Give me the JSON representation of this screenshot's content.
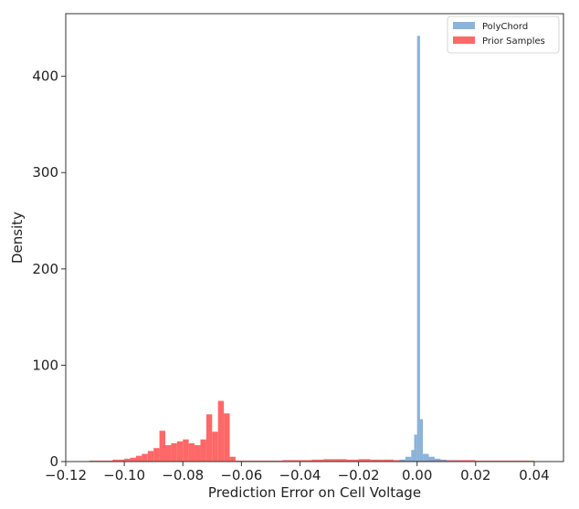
{
  "chart_data": {
    "type": "histogram",
    "title": "",
    "xlabel": "Prediction Error on Cell Voltage",
    "ylabel": "Density",
    "xlim": [
      -0.12,
      0.05
    ],
    "ylim": [
      0,
      465
    ],
    "x_ticks": [
      -0.12,
      -0.1,
      -0.08,
      -0.06,
      -0.04,
      -0.02,
      0.0,
      0.02,
      0.04
    ],
    "x_tick_labels": [
      "−0.12",
      "−0.10",
      "−0.08",
      "−0.06",
      "−0.04",
      "−0.02",
      "0.00",
      "0.02",
      "0.04"
    ],
    "y_ticks": [
      0,
      100,
      200,
      300,
      400
    ],
    "y_tick_labels": [
      "0",
      "100",
      "200",
      "300",
      "400"
    ],
    "grid": false,
    "legend_position": "top-right",
    "series": [
      {
        "name": "PolyChord",
        "color": "#6699cc",
        "opacity": 0.75,
        "bins": [
          {
            "x0": -0.006,
            "x1": -0.004,
            "y": 2
          },
          {
            "x0": -0.004,
            "x1": -0.002,
            "y": 5
          },
          {
            "x0": -0.002,
            "x1": -0.001,
            "y": 12
          },
          {
            "x0": -0.001,
            "x1": 0.0,
            "y": 28
          },
          {
            "x0": 0.0,
            "x1": 0.001,
            "y": 442
          },
          {
            "x0": 0.001,
            "x1": 0.002,
            "y": 44
          },
          {
            "x0": 0.002,
            "x1": 0.004,
            "y": 8
          },
          {
            "x0": 0.004,
            "x1": 0.006,
            "y": 5
          },
          {
            "x0": 0.006,
            "x1": 0.008,
            "y": 3
          },
          {
            "x0": 0.008,
            "x1": 0.01,
            "y": 2
          },
          {
            "x0": 0.01,
            "x1": 0.014,
            "y": 1
          }
        ]
      },
      {
        "name": "Prior Samples",
        "color": "#ff4d4d",
        "opacity": 0.85,
        "bins": [
          {
            "x0": -0.112,
            "x1": -0.108,
            "y": 1
          },
          {
            "x0": -0.108,
            "x1": -0.104,
            "y": 1
          },
          {
            "x0": -0.104,
            "x1": -0.102,
            "y": 2
          },
          {
            "x0": -0.102,
            "x1": -0.1,
            "y": 2
          },
          {
            "x0": -0.1,
            "x1": -0.098,
            "y": 3
          },
          {
            "x0": -0.098,
            "x1": -0.096,
            "y": 4
          },
          {
            "x0": -0.096,
            "x1": -0.094,
            "y": 6
          },
          {
            "x0": -0.094,
            "x1": -0.092,
            "y": 8
          },
          {
            "x0": -0.092,
            "x1": -0.09,
            "y": 11
          },
          {
            "x0": -0.09,
            "x1": -0.088,
            "y": 14
          },
          {
            "x0": -0.088,
            "x1": -0.086,
            "y": 32
          },
          {
            "x0": -0.086,
            "x1": -0.084,
            "y": 17
          },
          {
            "x0": -0.084,
            "x1": -0.082,
            "y": 19
          },
          {
            "x0": -0.082,
            "x1": -0.08,
            "y": 21
          },
          {
            "x0": -0.08,
            "x1": -0.078,
            "y": 23
          },
          {
            "x0": -0.078,
            "x1": -0.076,
            "y": 19
          },
          {
            "x0": -0.076,
            "x1": -0.074,
            "y": 17
          },
          {
            "x0": -0.074,
            "x1": -0.072,
            "y": 23
          },
          {
            "x0": -0.072,
            "x1": -0.07,
            "y": 49
          },
          {
            "x0": -0.07,
            "x1": -0.068,
            "y": 31
          },
          {
            "x0": -0.068,
            "x1": -0.066,
            "y": 63
          },
          {
            "x0": -0.066,
            "x1": -0.064,
            "y": 50
          },
          {
            "x0": -0.064,
            "x1": -0.062,
            "y": 5
          },
          {
            "x0": -0.062,
            "x1": -0.058,
            "y": 1
          },
          {
            "x0": -0.058,
            "x1": -0.054,
            "y": 1
          },
          {
            "x0": -0.054,
            "x1": -0.046,
            "y": 1
          },
          {
            "x0": -0.046,
            "x1": -0.04,
            "y": 1.5
          },
          {
            "x0": -0.04,
            "x1": -0.036,
            "y": 1.5
          },
          {
            "x0": -0.036,
            "x1": -0.032,
            "y": 2
          },
          {
            "x0": -0.032,
            "x1": -0.028,
            "y": 2.5
          },
          {
            "x0": -0.028,
            "x1": -0.024,
            "y": 2.5
          },
          {
            "x0": -0.024,
            "x1": -0.02,
            "y": 2
          },
          {
            "x0": -0.02,
            "x1": -0.016,
            "y": 2.5
          },
          {
            "x0": -0.016,
            "x1": -0.012,
            "y": 2
          },
          {
            "x0": -0.012,
            "x1": -0.008,
            "y": 2
          },
          {
            "x0": -0.008,
            "x1": -0.004,
            "y": 1.5
          },
          {
            "x0": -0.004,
            "x1": 0.004,
            "y": 1
          },
          {
            "x0": 0.004,
            "x1": 0.012,
            "y": 1.5
          },
          {
            "x0": 0.012,
            "x1": 0.02,
            "y": 1.5
          },
          {
            "x0": 0.02,
            "x1": 0.03,
            "y": 1
          },
          {
            "x0": 0.03,
            "x1": 0.04,
            "y": 1
          },
          {
            "x0": 0.04,
            "x1": 0.046,
            "y": 0.5
          }
        ]
      }
    ],
    "legend": [
      {
        "label": "PolyChord",
        "color": "#6699cc"
      },
      {
        "label": "Prior Samples",
        "color": "#ff4d4d"
      }
    ]
  }
}
